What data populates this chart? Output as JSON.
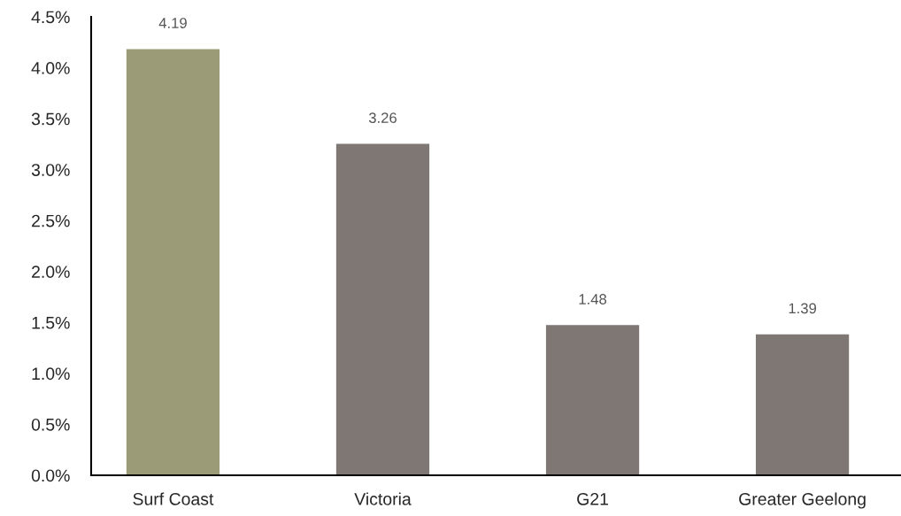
{
  "chart_data": {
    "type": "bar",
    "categories": [
      "Surf Coast",
      "Victoria",
      "G21",
      "Greater Geelong"
    ],
    "values": [
      4.19,
      3.26,
      1.48,
      1.39
    ],
    "colors": [
      "#9c9b78",
      "#7f7774",
      "#7f7774",
      "#7f7774"
    ],
    "data_labels": true,
    "ylim": [
      0,
      4.5
    ],
    "yticks": [
      {
        "value": 0,
        "label": "0.0%"
      },
      {
        "value": 0.5,
        "label": "0.5%"
      },
      {
        "value": 1,
        "label": "1.0%"
      },
      {
        "value": 1.5,
        "label": "1.5%"
      },
      {
        "value": 2,
        "label": "2.0%"
      },
      {
        "value": 2.5,
        "label": "2.5%"
      },
      {
        "value": 3,
        "label": "3.0%"
      },
      {
        "value": 3.5,
        "label": "3.5%"
      },
      {
        "value": 4,
        "label": "4.0%"
      },
      {
        "value": 4.5,
        "label": "4.5%"
      }
    ],
    "grid": false,
    "legend": false
  }
}
